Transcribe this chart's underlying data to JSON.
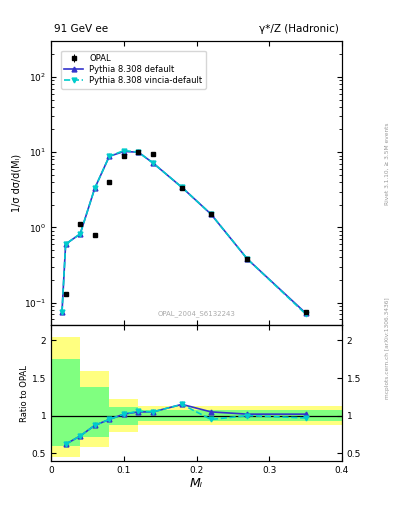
{
  "title_left": "91 GeV ee",
  "title_right": "γ*/Z (Hadronic)",
  "ylabel_main": "1/σ dσ/d(Mₗ)",
  "ylabel_ratio": "Ratio to OPAL",
  "xlabel": "Mₗ",
  "rivet_label": "Rivet 3.1.10, ≥ 3.5M events",
  "arxiv_label": "mcplots.cern.ch [arXiv:1306.3436]",
  "ref_label": "OPAL_2004_S6132243",
  "opal_x": [
    0.02,
    0.04,
    0.06,
    0.08,
    0.1,
    0.12,
    0.14,
    0.18,
    0.22,
    0.27,
    0.35
  ],
  "opal_y": [
    0.13,
    1.1,
    0.8,
    4.0,
    9.0,
    10.0,
    9.5,
    3.3,
    1.5,
    0.38,
    0.075
  ],
  "opal_yerr": [
    0.008,
    0.04,
    0.04,
    0.15,
    0.25,
    0.25,
    0.25,
    0.1,
    0.04,
    0.012,
    0.003
  ],
  "py_default_x": [
    0.015,
    0.02,
    0.04,
    0.06,
    0.08,
    0.1,
    0.12,
    0.14,
    0.18,
    0.22,
    0.27,
    0.35
  ],
  "py_default_y": [
    0.075,
    0.6,
    0.82,
    3.3,
    8.8,
    10.2,
    10.0,
    7.2,
    3.4,
    1.5,
    0.38,
    0.073
  ],
  "py_vincia_x": [
    0.015,
    0.02,
    0.04,
    0.06,
    0.08,
    0.1,
    0.12,
    0.14,
    0.18,
    0.22,
    0.27,
    0.35
  ],
  "py_vincia_y": [
    0.075,
    0.6,
    0.82,
    3.3,
    8.8,
    10.5,
    10.0,
    7.2,
    3.4,
    1.5,
    0.38,
    0.071
  ],
  "ratio_x": [
    0.02,
    0.04,
    0.06,
    0.08,
    0.1,
    0.12,
    0.14,
    0.18,
    0.22,
    0.27,
    0.35
  ],
  "ratio_default": [
    0.62,
    0.73,
    0.87,
    0.95,
    1.02,
    1.05,
    1.05,
    1.15,
    1.05,
    1.02,
    1.02
  ],
  "ratio_vincia": [
    0.62,
    0.73,
    0.87,
    0.95,
    1.02,
    1.06,
    1.05,
    1.15,
    0.95,
    1.0,
    0.97
  ],
  "yellow_band_edges": [
    0.0,
    0.02,
    0.04,
    0.08,
    0.12,
    0.4
  ],
  "yellow_band_lo": [
    0.45,
    0.45,
    0.58,
    0.78,
    0.87,
    0.87
  ],
  "yellow_band_hi": [
    2.05,
    2.05,
    1.6,
    1.22,
    1.13,
    1.13
  ],
  "green_band_edges": [
    0.0,
    0.02,
    0.04,
    0.08,
    0.12,
    0.4
  ],
  "green_band_lo": [
    0.6,
    0.6,
    0.72,
    0.87,
    0.93,
    0.93
  ],
  "green_band_hi": [
    1.75,
    1.75,
    1.38,
    1.12,
    1.07,
    1.07
  ],
  "color_opal": "#000000",
  "color_default": "#3333cc",
  "color_vincia": "#00cccc",
  "color_yellow": "#ffff80",
  "color_green": "#80ff80",
  "xlim": [
    0.0,
    0.4
  ],
  "ylim_main_log": [
    0.05,
    300
  ],
  "ylim_ratio": [
    0.4,
    2.2
  ]
}
